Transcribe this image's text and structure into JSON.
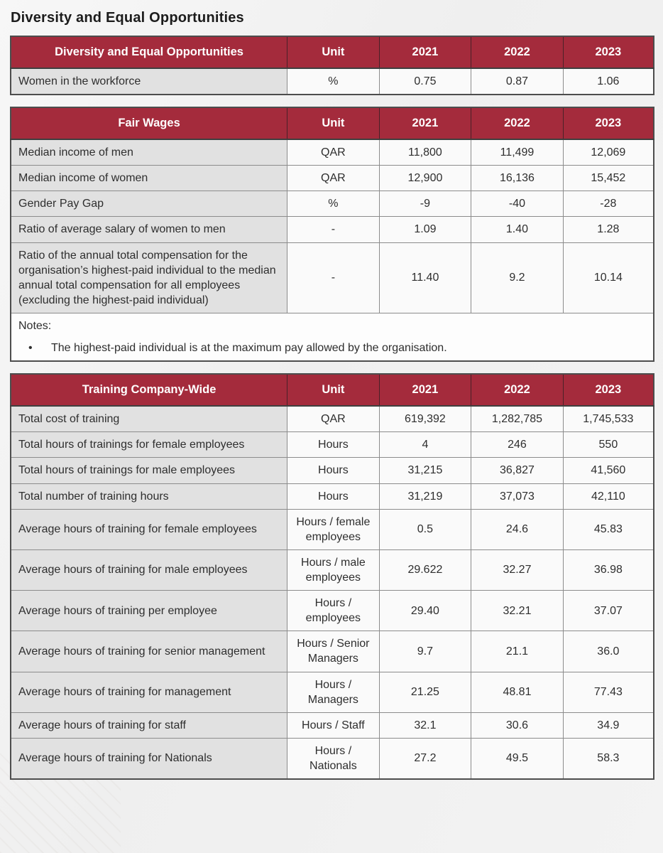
{
  "page": {
    "title": "Diversity and Equal Opportunities"
  },
  "colors": {
    "header_bg": "#a42b3c",
    "header_text": "#ffffff",
    "label_column_bg": "#e1e1e1",
    "value_cell_bg": "#fafafa",
    "outer_border": "#4d4d4d",
    "inner_border": "#8c8c8c"
  },
  "tables": [
    {
      "id": "diversity-equal-opportunities",
      "title": "Diversity and Equal Opportunities",
      "columns": [
        "Unit",
        "2021",
        "2022",
        "2023"
      ],
      "rows": [
        {
          "label": "Women in the workforce",
          "unit": "%",
          "values": [
            "0.75",
            "0.87",
            "1.06"
          ]
        }
      ]
    },
    {
      "id": "fair-wages",
      "title": "Fair Wages",
      "columns": [
        "Unit",
        "2021",
        "2022",
        "2023"
      ],
      "rows": [
        {
          "label": "Median income of men",
          "unit": "QAR",
          "values": [
            "11,800",
            "11,499",
            "12,069"
          ]
        },
        {
          "label": "Median income of women",
          "unit": "QAR",
          "values": [
            "12,900",
            "16,136",
            "15,452"
          ]
        },
        {
          "label": "Gender Pay Gap",
          "unit": "%",
          "values": [
            "-9",
            "-40",
            "-28"
          ]
        },
        {
          "label": "Ratio of average salary of women to men",
          "unit": "-",
          "values": [
            "1.09",
            "1.40",
            "1.28"
          ]
        },
        {
          "label": "Ratio of the annual total compensation for the organisation’s highest-paid individual to the median annual total compensation for all employees (excluding the highest-paid individual)",
          "unit": "-",
          "values": [
            "11.40",
            "9.2",
            "10.14"
          ]
        }
      ],
      "notes": {
        "heading": "Notes:",
        "bullet_glyph": "•",
        "items": [
          "The highest-paid individual is at the maximum pay allowed by the organisation."
        ]
      }
    },
    {
      "id": "training-company-wide",
      "title": "Training Company-Wide",
      "columns": [
        "Unit",
        "2021",
        "2022",
        "2023"
      ],
      "rows": [
        {
          "label": "Total cost of training",
          "unit": "QAR",
          "values": [
            "619,392",
            "1,282,785",
            "1,745,533"
          ]
        },
        {
          "label": "Total hours of trainings for female employees",
          "unit": "Hours",
          "values": [
            "4",
            "246",
            "550"
          ]
        },
        {
          "label": "Total hours of trainings for male employees",
          "unit": "Hours",
          "values": [
            "31,215",
            "36,827",
            "41,560"
          ]
        },
        {
          "label": "Total number of training hours",
          "unit": "Hours",
          "values": [
            "31,219",
            "37,073",
            "42,110"
          ]
        },
        {
          "label": "Average hours of training for female employees",
          "unit": "Hours / female employees",
          "values": [
            "0.5",
            "24.6",
            "45.83"
          ]
        },
        {
          "label": "Average hours of training for male employees",
          "unit": "Hours / male employees",
          "values": [
            "29.622",
            "32.27",
            "36.98"
          ]
        },
        {
          "label": "Average hours of training per employee",
          "unit": "Hours / employees",
          "values": [
            "29.40",
            "32.21",
            "37.07"
          ]
        },
        {
          "label": "Average hours of training for senior management",
          "unit": "Hours / Senior Managers",
          "values": [
            "9.7",
            "21.1",
            "36.0"
          ]
        },
        {
          "label": "Average hours of training for management",
          "unit": "Hours / Managers",
          "values": [
            "21.25",
            "48.81",
            "77.43"
          ]
        },
        {
          "label": "Average hours of training for staff",
          "unit": "Hours / Staff",
          "values": [
            "32.1",
            "30.6",
            "34.9"
          ]
        },
        {
          "label": "Average hours of training for Nationals",
          "unit": "Hours / Nationals",
          "values": [
            "27.2",
            "49.5",
            "58.3"
          ]
        }
      ]
    }
  ]
}
